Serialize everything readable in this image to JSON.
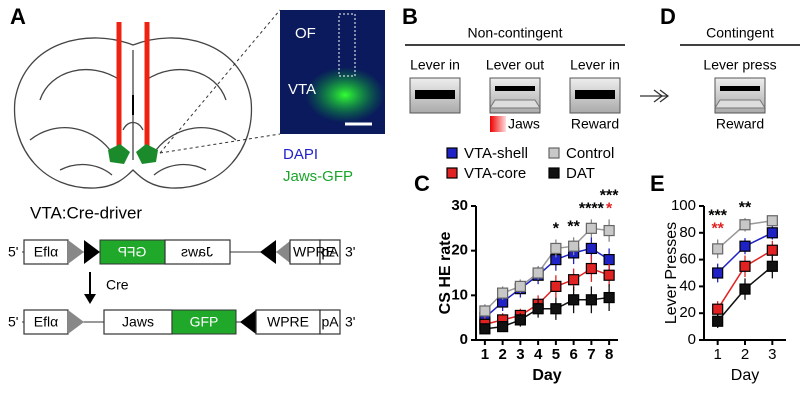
{
  "panel_labels": [
    "A",
    "B",
    "C",
    "D",
    "E"
  ],
  "panel_a": {
    "inset_labels": [
      "OF",
      "VTA"
    ],
    "stain_labels": [
      "DAPI",
      "Jaws-GFP"
    ],
    "title": "VTA:Cre-driver",
    "construct_before": [
      "5'",
      "Eflα",
      "GFP",
      "Jaws",
      "WPRE",
      "pA",
      "3'"
    ],
    "recombinase": "Cre",
    "construct_after": [
      "5'",
      "Eflα",
      "Jaws",
      "GFP",
      "WPRE",
      "pA",
      "3'"
    ]
  },
  "panel_b": {
    "title": "Non-contingent",
    "steps": [
      "Lever in",
      "Lever out",
      "Lever in"
    ],
    "notes": [
      "Jaws",
      "Reward"
    ]
  },
  "panel_d": {
    "title": "Contingent",
    "steps": [
      "Lever press"
    ],
    "notes": [
      "Reward"
    ]
  },
  "chart_data": [
    {
      "type": "line",
      "ylabel": "CS HE rate",
      "xlabel": "Day",
      "categories": [
        "1",
        "2",
        "3",
        "4",
        "5",
        "6",
        "7",
        "8"
      ],
      "ylim": [
        0,
        30
      ],
      "yticks": [
        0,
        10,
        20,
        30
      ],
      "series": [
        {
          "name": "VTA-shell",
          "color": "#1f22c4",
          "values": [
            5,
            8.5,
            11.5,
            14.5,
            18,
            19.5,
            20.5,
            18
          ],
          "errors": [
            1.5,
            2,
            2,
            2,
            2.5,
            2.5,
            2.5,
            2.5
          ]
        },
        {
          "name": "Control",
          "color": "#c8c8c8",
          "values": [
            6.5,
            10.5,
            12,
            15,
            20.5,
            21,
            25,
            24.5
          ],
          "errors": [
            1.5,
            1.5,
            1.5,
            1.5,
            2,
            2,
            2,
            2.5
          ]
        },
        {
          "name": "VTA-core",
          "color": "#e02222",
          "values": [
            3.5,
            4.5,
            5.5,
            8,
            12,
            13.5,
            16,
            14.5
          ],
          "errors": [
            1.5,
            1.5,
            1.5,
            2,
            2.5,
            2.5,
            3,
            2.5
          ]
        },
        {
          "name": "DAT",
          "color": "#111111",
          "values": [
            2.5,
            3,
            4.5,
            7,
            7,
            9,
            9,
            9.5
          ],
          "errors": [
            1,
            1,
            1.5,
            2,
            2.5,
            3,
            3,
            3
          ]
        }
      ],
      "annotations": [
        {
          "category": "5",
          "text": "*"
        },
        {
          "category": "6",
          "text": "**"
        },
        {
          "category": "7",
          "text": "****"
        },
        {
          "category": "8",
          "text": "***"
        },
        {
          "category": "8",
          "text": "*",
          "color": "#e02222"
        }
      ]
    },
    {
      "type": "line",
      "ylabel": "Lever  Presses",
      "xlabel": "Day",
      "categories": [
        "1",
        "2",
        "3"
      ],
      "ylim": [
        0,
        100
      ],
      "yticks": [
        0,
        20,
        40,
        60,
        80,
        100
      ],
      "series": [
        {
          "color": "#1f22c4",
          "values": [
            50,
            70,
            80
          ],
          "errors": [
            7,
            6,
            5
          ]
        },
        {
          "color": "#c8c8c8",
          "values": [
            68,
            86,
            89
          ],
          "errors": [
            7,
            5,
            4
          ]
        },
        {
          "color": "#e02222",
          "values": [
            23,
            55,
            67
          ],
          "errors": [
            6,
            8,
            7
          ]
        },
        {
          "color": "#111111",
          "values": [
            14,
            38,
            55
          ],
          "errors": [
            5,
            8,
            9
          ]
        }
      ],
      "annotations": [
        {
          "category": "1",
          "text": "***"
        },
        {
          "category": "1",
          "text": "**",
          "color": "#e02222"
        },
        {
          "category": "2",
          "text": "**"
        }
      ]
    }
  ]
}
